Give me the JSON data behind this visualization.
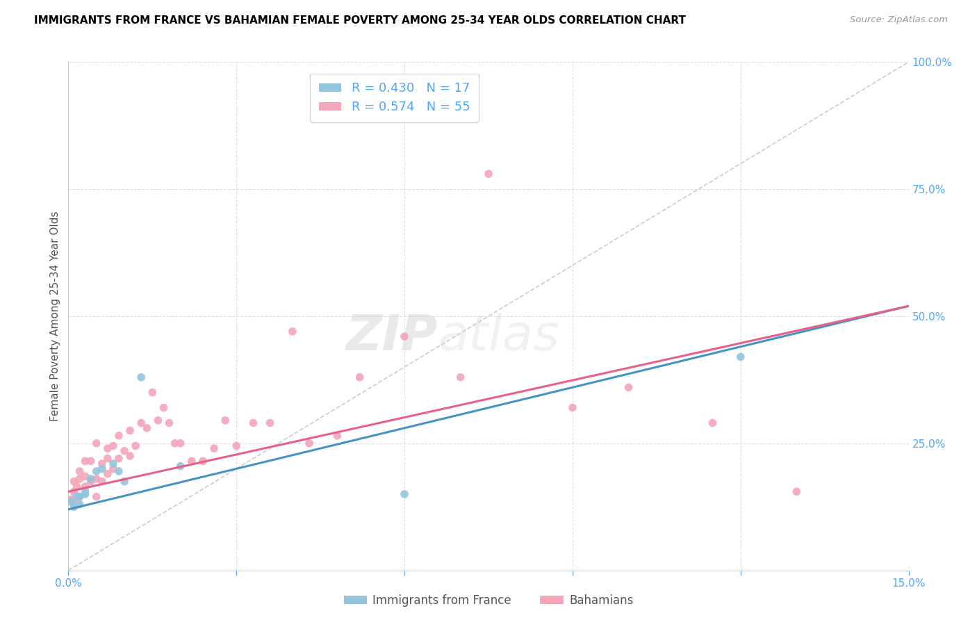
{
  "title": "IMMIGRANTS FROM FRANCE VS BAHAMIAN FEMALE POVERTY AMONG 25-34 YEAR OLDS CORRELATION CHART",
  "source": "Source: ZipAtlas.com",
  "ylabel": "Female Poverty Among 25-34 Year Olds",
  "x_min": 0.0,
  "x_max": 0.15,
  "y_min": 0.0,
  "y_max": 1.0,
  "blue_color": "#92c5de",
  "pink_color": "#f4a5b8",
  "blue_line_color": "#4393c3",
  "pink_line_color": "#e8608a",
  "dashed_line_color": "#bbbbbb",
  "legend_blue_label": "R = 0.430   N = 17",
  "legend_pink_label": "R = 0.574   N = 55",
  "watermark": "ZIPatlas",
  "france_x": [
    0.0005,
    0.001,
    0.0015,
    0.002,
    0.002,
    0.003,
    0.003,
    0.004,
    0.005,
    0.006,
    0.008,
    0.009,
    0.01,
    0.013,
    0.02,
    0.06,
    0.12
  ],
  "france_y": [
    0.135,
    0.125,
    0.145,
    0.13,
    0.145,
    0.15,
    0.155,
    0.18,
    0.195,
    0.2,
    0.21,
    0.195,
    0.175,
    0.38,
    0.205,
    0.15,
    0.42
  ],
  "bahamas_x": [
    0.0005,
    0.001,
    0.001,
    0.001,
    0.0015,
    0.002,
    0.002,
    0.002,
    0.003,
    0.003,
    0.003,
    0.004,
    0.004,
    0.005,
    0.005,
    0.005,
    0.006,
    0.006,
    0.007,
    0.007,
    0.007,
    0.008,
    0.008,
    0.009,
    0.009,
    0.01,
    0.011,
    0.011,
    0.012,
    0.013,
    0.014,
    0.015,
    0.016,
    0.017,
    0.018,
    0.019,
    0.02,
    0.022,
    0.024,
    0.026,
    0.028,
    0.03,
    0.033,
    0.036,
    0.04,
    0.043,
    0.048,
    0.052,
    0.06,
    0.07,
    0.075,
    0.09,
    0.1,
    0.115,
    0.13
  ],
  "bahamas_y": [
    0.14,
    0.135,
    0.155,
    0.175,
    0.165,
    0.145,
    0.18,
    0.195,
    0.165,
    0.185,
    0.215,
    0.175,
    0.215,
    0.145,
    0.18,
    0.25,
    0.175,
    0.21,
    0.19,
    0.22,
    0.24,
    0.2,
    0.245,
    0.22,
    0.265,
    0.235,
    0.225,
    0.275,
    0.245,
    0.29,
    0.28,
    0.35,
    0.295,
    0.32,
    0.29,
    0.25,
    0.25,
    0.215,
    0.215,
    0.24,
    0.295,
    0.245,
    0.29,
    0.29,
    0.47,
    0.25,
    0.265,
    0.38,
    0.46,
    0.38,
    0.78,
    0.32,
    0.36,
    0.29,
    0.155
  ]
}
